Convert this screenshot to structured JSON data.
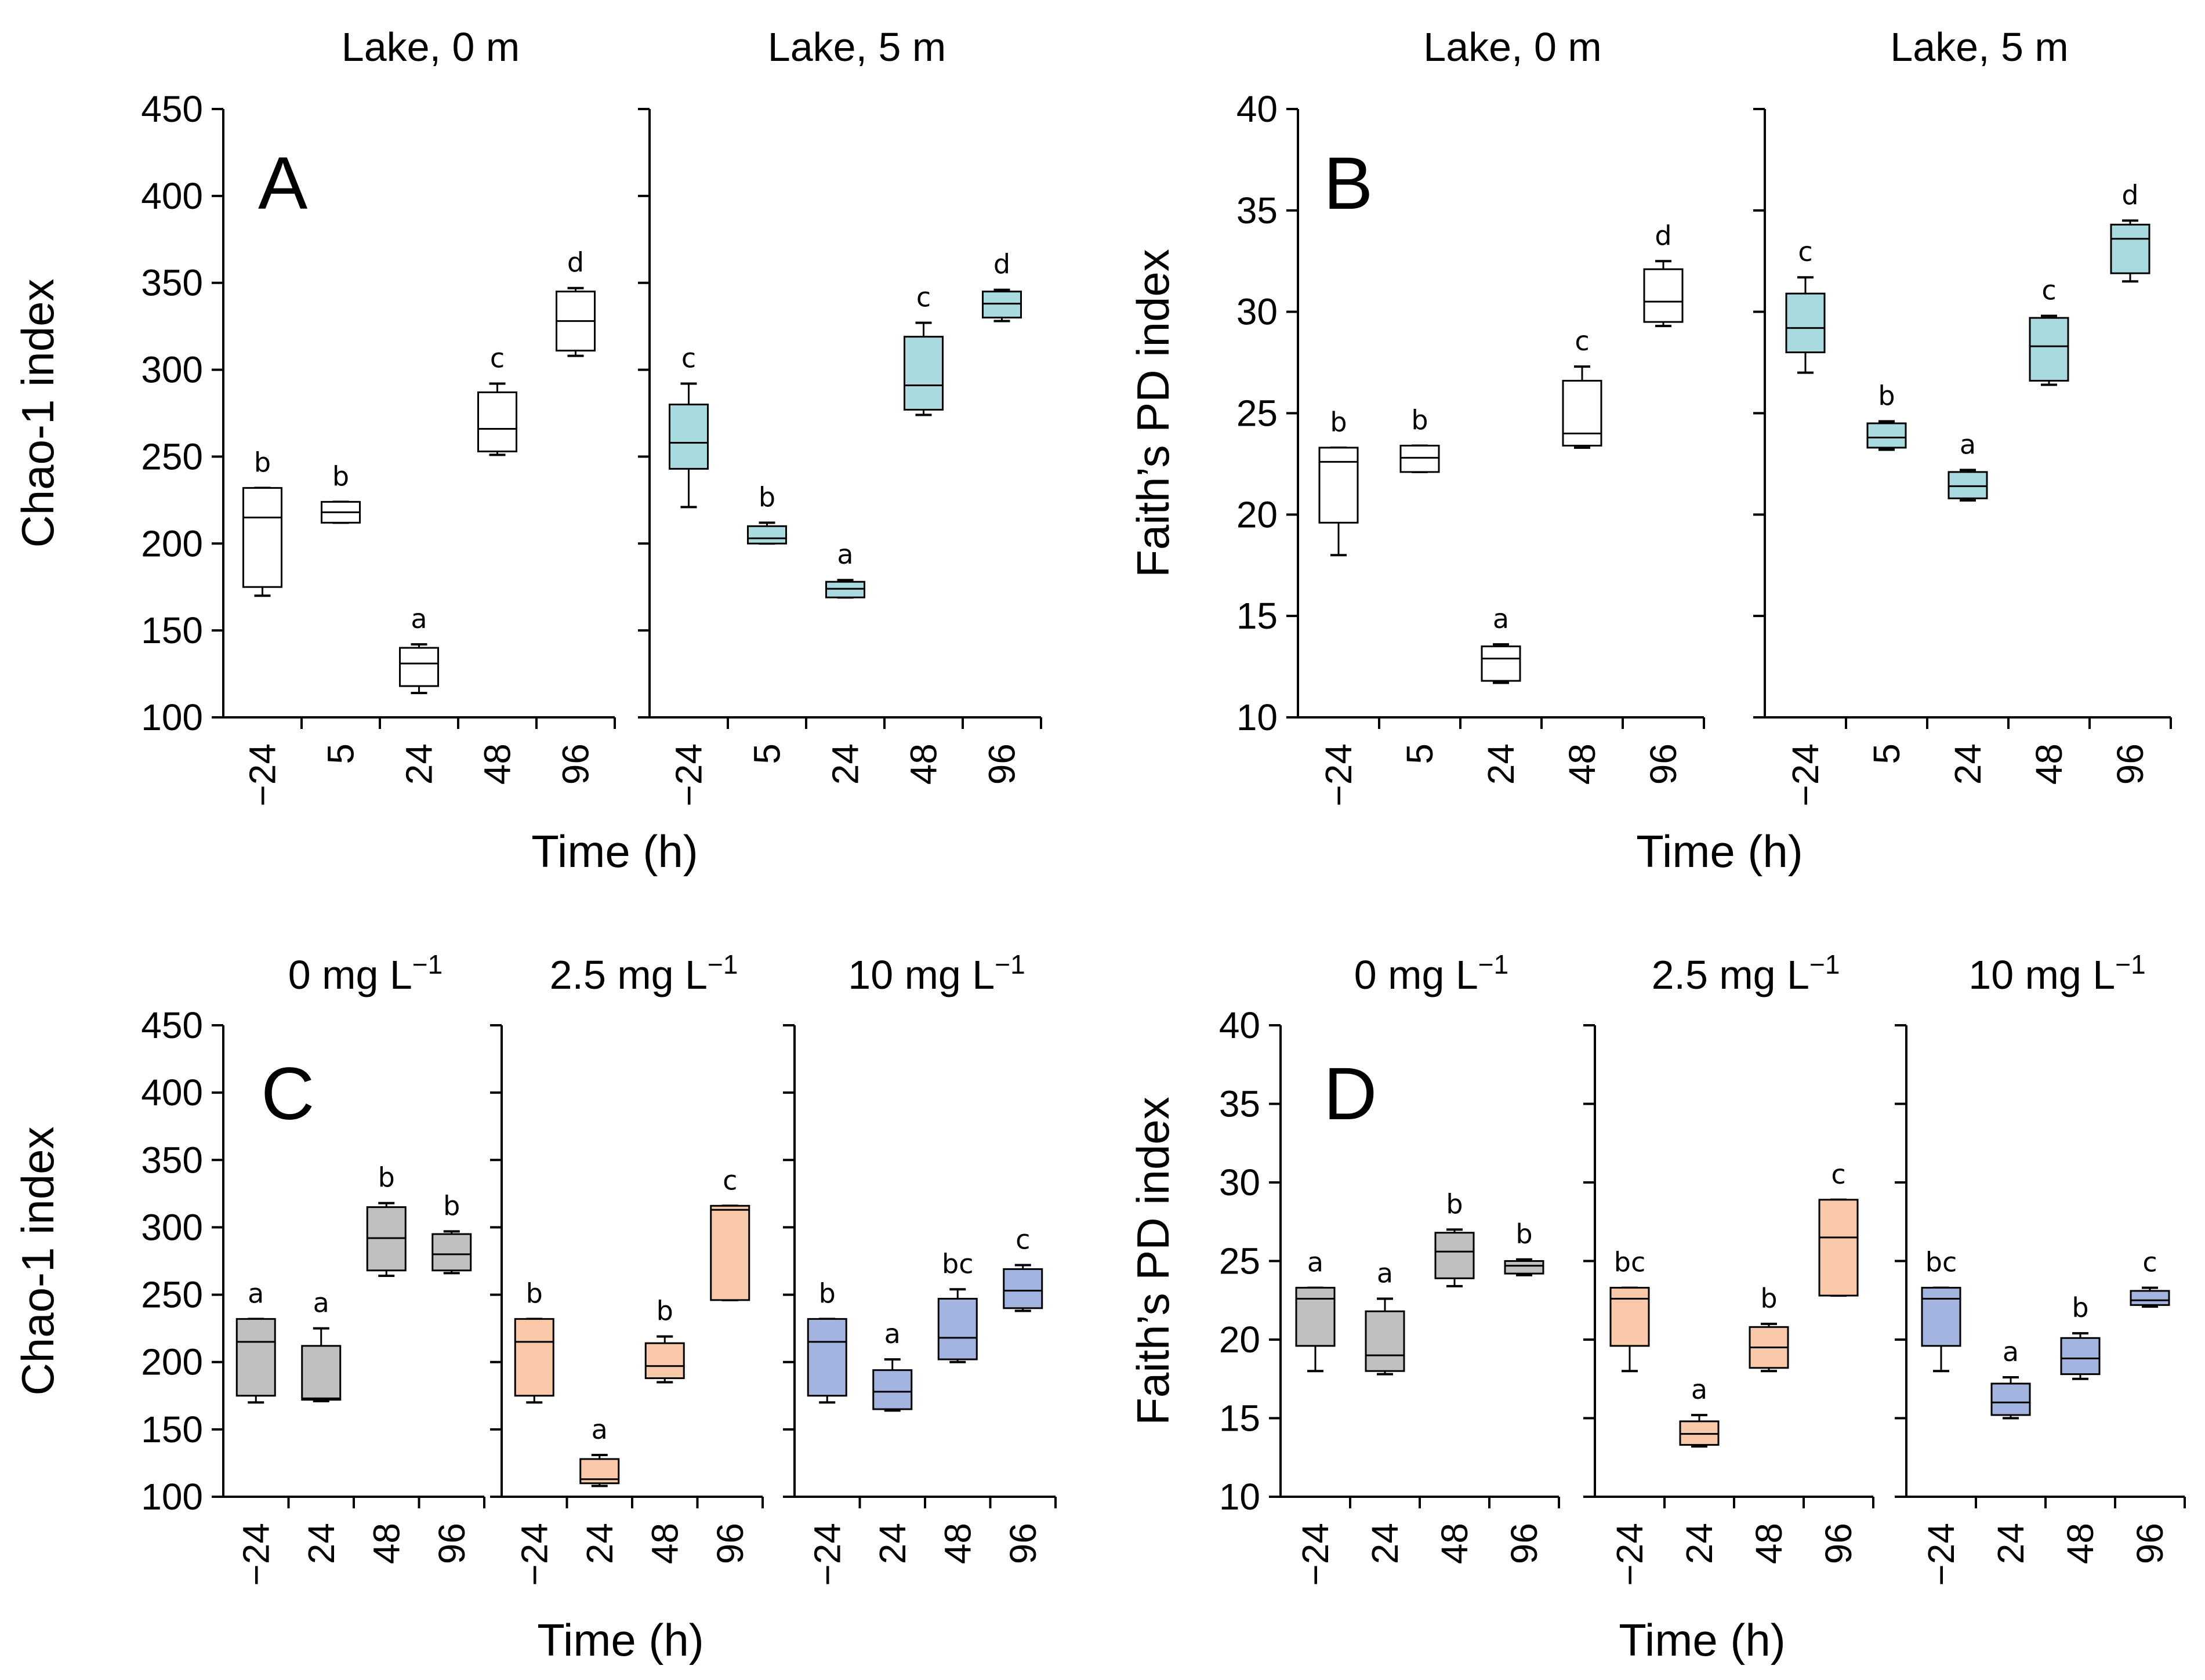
{
  "chart_data": [
    {
      "id": "A",
      "type": "box",
      "panel_letter": "A",
      "ylabel": "Chao-1 index",
      "xlabel": "Time (h)",
      "ylim": [
        100,
        450
      ],
      "yticks": [
        100,
        150,
        200,
        250,
        300,
        350,
        400,
        450
      ],
      "colors": [
        "#ffffff",
        "#a8dae0"
      ],
      "subplots": [
        {
          "title": "Lake, 0 m",
          "categories": [
            "−24",
            "5",
            "24",
            "48",
            "96"
          ],
          "boxes": [
            {
              "min": 170,
              "q1": 175,
              "median": 215,
              "q3": 232,
              "max": 232,
              "letter": "b"
            },
            {
              "min": 212,
              "q1": 212,
              "median": 218,
              "q3": 224,
              "max": 224,
              "letter": "b"
            },
            {
              "min": 114,
              "q1": 118,
              "median": 131,
              "q3": 140,
              "max": 142,
              "letter": "a"
            },
            {
              "min": 251,
              "q1": 253,
              "median": 266,
              "q3": 287,
              "max": 292,
              "letter": "c"
            },
            {
              "min": 308,
              "q1": 311,
              "median": 328,
              "q3": 345,
              "max": 347,
              "letter": "d"
            }
          ]
        },
        {
          "title": "Lake, 5 m",
          "categories": [
            "−24",
            "5",
            "24",
            "48",
            "96"
          ],
          "boxes": [
            {
              "min": 221,
              "q1": 243,
              "median": 258,
              "q3": 280,
              "max": 292,
              "letter": "c"
            },
            {
              "min": 200,
              "q1": 200,
              "median": 203,
              "q3": 210,
              "max": 212,
              "letter": "b"
            },
            {
              "min": 169,
              "q1": 169,
              "median": 174,
              "q3": 178,
              "max": 179,
              "letter": "a"
            },
            {
              "min": 274,
              "q1": 277,
              "median": 291,
              "q3": 319,
              "max": 327,
              "letter": "c"
            },
            {
              "min": 328,
              "q1": 330,
              "median": 338,
              "q3": 345,
              "max": 346,
              "letter": "d"
            }
          ]
        }
      ]
    },
    {
      "id": "B",
      "type": "box",
      "panel_letter": "B",
      "ylabel": "Faith’s PD index",
      "xlabel": "Time (h)",
      "ylim": [
        10,
        40
      ],
      "yticks": [
        10,
        15,
        20,
        25,
        30,
        35,
        40
      ],
      "colors": [
        "#ffffff",
        "#a8dae0"
      ],
      "subplots": [
        {
          "title": "Lake, 0 m",
          "categories": [
            "−24",
            "5",
            "24",
            "48",
            "96"
          ],
          "boxes": [
            {
              "min": 18,
              "q1": 19.6,
              "median": 22.6,
              "q3": 23.3,
              "max": 23.3,
              "letter": "b"
            },
            {
              "min": 22.1,
              "q1": 22.1,
              "median": 22.8,
              "q3": 23.4,
              "max": 23.4,
              "letter": "b"
            },
            {
              "min": 11.7,
              "q1": 11.8,
              "median": 12.9,
              "q3": 13.5,
              "max": 13.6,
              "letter": "a"
            },
            {
              "min": 23.3,
              "q1": 23.4,
              "median": 24,
              "q3": 26.6,
              "max": 27.3,
              "letter": "c"
            },
            {
              "min": 29.3,
              "q1": 29.5,
              "median": 30.5,
              "q3": 32.1,
              "max": 32.5,
              "letter": "d"
            }
          ]
        },
        {
          "title": "Lake, 5 m",
          "categories": [
            "−24",
            "5",
            "24",
            "48",
            "96"
          ],
          "boxes": [
            {
              "min": 27,
              "q1": 28,
              "median": 29.2,
              "q3": 30.9,
              "max": 31.7,
              "letter": "c"
            },
            {
              "min": 23.2,
              "q1": 23.3,
              "median": 23.8,
              "q3": 24.5,
              "max": 24.6,
              "letter": "b"
            },
            {
              "min": 20.7,
              "q1": 20.8,
              "median": 21.4,
              "q3": 22.1,
              "max": 22.2,
              "letter": "a"
            },
            {
              "min": 26.4,
              "q1": 26.6,
              "median": 28.3,
              "q3": 29.7,
              "max": 29.8,
              "letter": "c"
            },
            {
              "min": 31.5,
              "q1": 31.9,
              "median": 33.6,
              "q3": 34.3,
              "max": 34.5,
              "letter": "d"
            }
          ]
        }
      ]
    },
    {
      "id": "C",
      "type": "box",
      "panel_letter": "C",
      "ylabel": "Chao-1 index",
      "xlabel": "Time (h)",
      "ylim": [
        100,
        450
      ],
      "yticks": [
        100,
        150,
        200,
        250,
        300,
        350,
        400,
        450
      ],
      "colors": [
        "#c0c0c0",
        "#f8c8a8",
        "#a4b4e0"
      ],
      "subplots": [
        {
          "title": "0 mg L",
          "title_sup": "−1",
          "categories": [
            "−24",
            "24",
            "48",
            "96"
          ],
          "boxes": [
            {
              "min": 170,
              "q1": 175,
              "median": 215,
              "q3": 232,
              "max": 232,
              "letter": "a"
            },
            {
              "min": 171,
              "q1": 172,
              "median": 173,
              "q3": 212,
              "max": 225,
              "letter": "a"
            },
            {
              "min": 264,
              "q1": 268,
              "median": 292,
              "q3": 315,
              "max": 318,
              "letter": "b"
            },
            {
              "min": 266,
              "q1": 268,
              "median": 280,
              "q3": 295,
              "max": 297,
              "letter": "b"
            }
          ]
        },
        {
          "title": "2.5 mg L",
          "title_sup": "−1",
          "categories": [
            "−24",
            "24",
            "48",
            "96"
          ],
          "boxes": [
            {
              "min": 170,
              "q1": 175,
              "median": 215,
              "q3": 232,
              "max": 232,
              "letter": "b"
            },
            {
              "min": 108,
              "q1": 110,
              "median": 113,
              "q3": 128,
              "max": 131,
              "letter": "a"
            },
            {
              "min": 185,
              "q1": 188,
              "median": 197,
              "q3": 214,
              "max": 219,
              "letter": "b"
            },
            {
              "min": 246,
              "q1": 246,
              "median": 313,
              "q3": 316,
              "max": 316,
              "letter": "c"
            }
          ]
        },
        {
          "title": "10 mg L",
          "title_sup": "−1",
          "categories": [
            "−24",
            "24",
            "48",
            "96"
          ],
          "boxes": [
            {
              "min": 170,
              "q1": 175,
              "median": 215,
              "q3": 232,
              "max": 232,
              "letter": "b"
            },
            {
              "min": 164,
              "q1": 165,
              "median": 178,
              "q3": 194,
              "max": 202,
              "letter": "a"
            },
            {
              "min": 200,
              "q1": 202,
              "median": 218,
              "q3": 247,
              "max": 254,
              "letter": "bc"
            },
            {
              "min": 238,
              "q1": 240,
              "median": 253,
              "q3": 269,
              "max": 272,
              "letter": "c"
            }
          ]
        }
      ]
    },
    {
      "id": "D",
      "type": "box",
      "panel_letter": "D",
      "ylabel": "Faith’s PD index",
      "xlabel": "Time (h)",
      "ylim": [
        10,
        40
      ],
      "yticks": [
        10,
        15,
        20,
        25,
        30,
        35,
        40
      ],
      "colors": [
        "#c0c0c0",
        "#f8c8a8",
        "#a4b4e0"
      ],
      "subplots": [
        {
          "title": "0 mg L",
          "title_sup": "−1",
          "categories": [
            "−24",
            "24",
            "48",
            "96"
          ],
          "boxes": [
            {
              "min": 18,
              "q1": 19.6,
              "median": 22.6,
              "q3": 23.3,
              "max": 23.3,
              "letter": "a"
            },
            {
              "min": 17.8,
              "q1": 18,
              "median": 19,
              "q3": 21.8,
              "max": 22.6,
              "letter": "a"
            },
            {
              "min": 23.4,
              "q1": 23.9,
              "median": 25.6,
              "q3": 26.8,
              "max": 27,
              "letter": "b"
            },
            {
              "min": 24.1,
              "q1": 24.2,
              "median": 24.7,
              "q3": 25,
              "max": 25.1,
              "letter": "b"
            }
          ]
        },
        {
          "title": "2.5 mg L",
          "title_sup": "−1",
          "categories": [
            "−24",
            "24",
            "48",
            "96"
          ],
          "boxes": [
            {
              "min": 18,
              "q1": 19.6,
              "median": 22.6,
              "q3": 23.3,
              "max": 23.3,
              "letter": "bc"
            },
            {
              "min": 13.2,
              "q1": 13.3,
              "median": 14,
              "q3": 14.8,
              "max": 15.2,
              "letter": "a"
            },
            {
              "min": 18,
              "q1": 18.2,
              "median": 19.5,
              "q3": 20.8,
              "max": 21,
              "letter": "b"
            },
            {
              "min": 22.8,
              "q1": 22.8,
              "median": 26.5,
              "q3": 28.9,
              "max": 28.9,
              "letter": "c"
            }
          ]
        },
        {
          "title": "10 mg L",
          "title_sup": "−1",
          "categories": [
            "−24",
            "24",
            "48",
            "96"
          ],
          "boxes": [
            {
              "min": 18,
              "q1": 19.6,
              "median": 22.6,
              "q3": 23.3,
              "max": 23.3,
              "letter": "bc"
            },
            {
              "min": 15,
              "q1": 15.2,
              "median": 16,
              "q3": 17.2,
              "max": 17.6,
              "letter": "a"
            },
            {
              "min": 17.5,
              "q1": 17.8,
              "median": 18.8,
              "q3": 20.1,
              "max": 20.4,
              "letter": "b"
            },
            {
              "min": 22.1,
              "q1": 22.2,
              "median": 22.5,
              "q3": 23.1,
              "max": 23.3,
              "letter": "c"
            }
          ]
        }
      ]
    }
  ]
}
